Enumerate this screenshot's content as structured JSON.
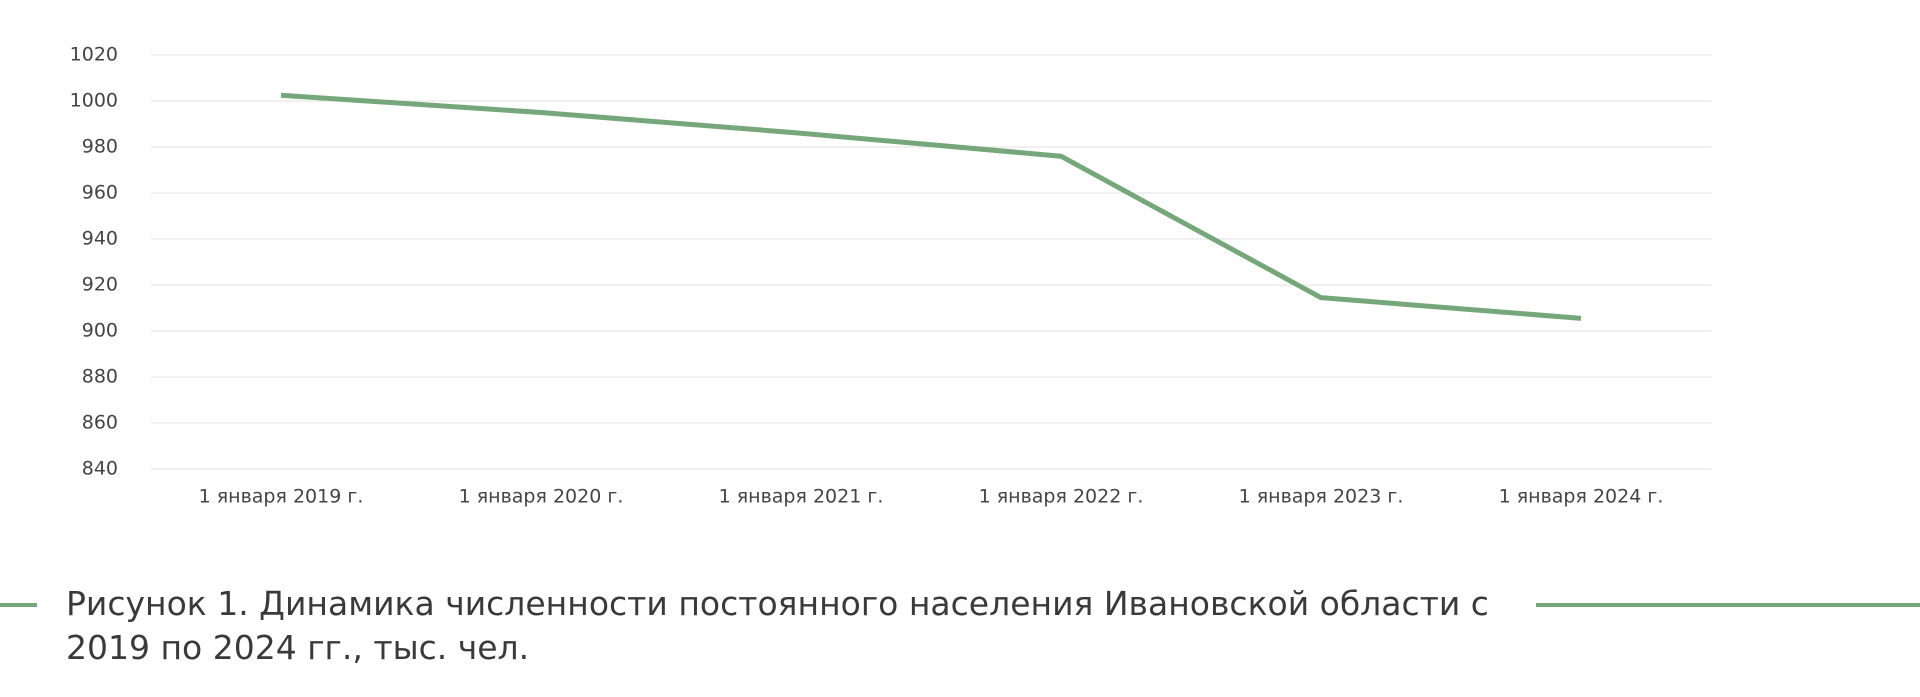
{
  "chart_data": {
    "type": "line",
    "caption": "Рисунок 1. Динамика численности постоянного населения Ивановской области с 2019 по 2024 гг., тыс. чел.",
    "categories": [
      "1 января 2019 г.",
      "1 января 2020 г.",
      "1 января 2021 г.",
      "1 января 2022 г.",
      "1 января 2023 г.",
      "1 января 2024 г."
    ],
    "values": [
      1002.5,
      995,
      986,
      976,
      914.5,
      905.5
    ],
    "color": "#76a77a",
    "ylim": [
      840,
      1020
    ],
    "yticks": [
      840,
      860,
      880,
      900,
      920,
      940,
      960,
      980,
      1000,
      1020
    ],
    "grid": true
  }
}
